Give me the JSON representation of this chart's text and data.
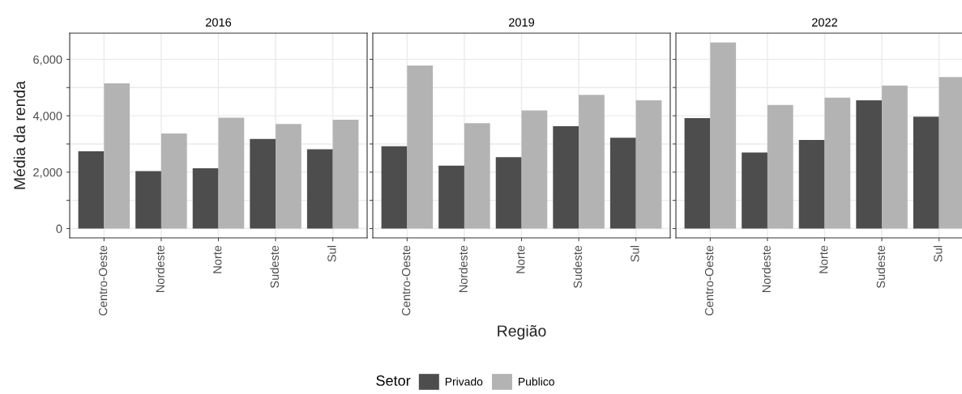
{
  "chart_data": [
    {
      "type": "bar",
      "title": "2016",
      "ylabel": "Média da renda",
      "legend_title": "Setor",
      "categories": [
        "Centro-Oeste",
        "Nordeste",
        "Norte",
        "Sudeste",
        "Sul"
      ],
      "series": [
        {
          "name": "Privado",
          "color": "#4d4d4d",
          "values": [
            2740,
            2040,
            2140,
            3180,
            2810
          ]
        },
        {
          "name": "Publico",
          "color": "#b3b3b3",
          "values": [
            5150,
            3370,
            3930,
            3710,
            3860
          ]
        }
      ],
      "ylim": [
        -330,
        6930
      ],
      "yticks": [
        {
          "value": 0,
          "label": "0"
        },
        {
          "value": 1000,
          "label": null
        },
        {
          "value": 2000,
          "label": "2,000"
        },
        {
          "value": 3000,
          "label": null
        },
        {
          "value": 4000,
          "label": "4,000"
        },
        {
          "value": 5000,
          "label": null
        },
        {
          "value": 6000,
          "label": "6,000"
        }
      ],
      "grid": true,
      "legend": "bottom"
    },
    {
      "type": "bar",
      "title": "2019",
      "xlabel": "Região",
      "categories": [
        "Centro-Oeste",
        "Nordeste",
        "Norte",
        "Sudeste",
        "Sul"
      ],
      "series": [
        {
          "color": "#4d4d4d",
          "values": [
            2920,
            2230,
            2530,
            3630,
            3220
          ]
        },
        {
          "color": "#b3b3b3",
          "values": [
            5780,
            3740,
            4190,
            4740,
            4550
          ]
        }
      ],
      "ylim": [
        -330,
        6930
      ],
      "yticks": [
        0,
        1000,
        2000,
        3000,
        4000,
        5000,
        6000
      ],
      "grid": true,
      "tick_labels": "x"
    },
    {
      "type": "bar",
      "title": "2022",
      "categories": [
        "Centro-Oeste",
        "Nordeste",
        "Norte",
        "Sudeste",
        "Sul"
      ],
      "series": [
        {
          "color": "#4d4d4d",
          "values": [
            3920,
            2700,
            3140,
            4550,
            3970
          ]
        },
        {
          "color": "#b3b3b3",
          "values": [
            6600,
            4380,
            4640,
            5070,
            5370
          ]
        }
      ],
      "ylim": [
        -330,
        6930
      ],
      "yticks": [
        0,
        1000,
        2000,
        3000,
        4000,
        5000,
        6000
      ],
      "grid": true,
      "tick_labels": "x"
    }
  ]
}
